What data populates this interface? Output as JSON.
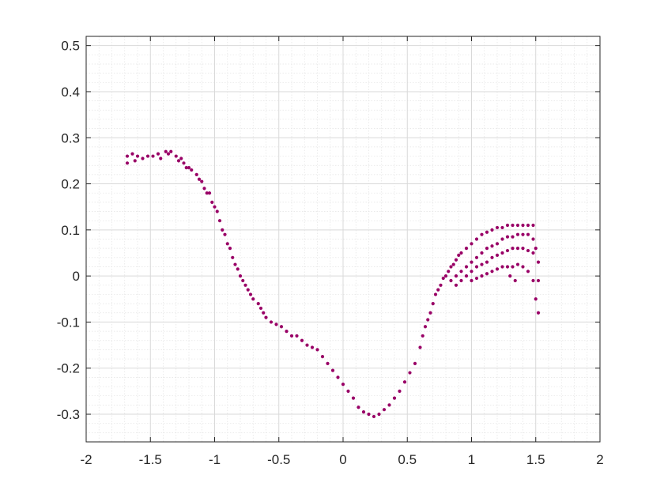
{
  "chart_data": {
    "type": "scatter",
    "title": "",
    "xlabel": "",
    "ylabel": "",
    "xlim": [
      -2,
      2
    ],
    "ylim": [
      -0.36,
      0.52
    ],
    "xticks": [
      -2,
      -1.5,
      -1,
      -0.5,
      0,
      0.5,
      1,
      1.5,
      2
    ],
    "xtick_labels": [
      "-2",
      "-1.5",
      "-1",
      "-0.5",
      "0",
      "0.5",
      "1",
      "1.5",
      "2"
    ],
    "yticks": [
      -0.3,
      -0.2,
      -0.1,
      0,
      0.1,
      0.2,
      0.3,
      0.4,
      0.5
    ],
    "ytick_labels": [
      "-0.3",
      "-0.2",
      "-0.1",
      "0",
      "0.1",
      "0.2",
      "0.3",
      "0.4",
      "0.5"
    ],
    "grid": "on (major and minor)",
    "marker_color": "#990066",
    "series": [
      {
        "values": [
          [
            -1.68,
            0.26
          ],
          [
            -1.68,
            0.245
          ],
          [
            -1.64,
            0.265
          ],
          [
            -1.62,
            0.25
          ],
          [
            -1.6,
            0.26
          ],
          [
            -1.56,
            0.255
          ],
          [
            -1.52,
            0.26
          ],
          [
            -1.48,
            0.26
          ],
          [
            -1.44,
            0.265
          ],
          [
            -1.42,
            0.255
          ],
          [
            -1.38,
            0.27
          ],
          [
            -1.36,
            0.265
          ],
          [
            -1.34,
            0.27
          ],
          [
            -1.3,
            0.26
          ],
          [
            -1.28,
            0.25
          ],
          [
            -1.26,
            0.255
          ],
          [
            -1.24,
            0.245
          ],
          [
            -1.22,
            0.235
          ],
          [
            -1.2,
            0.235
          ],
          [
            -1.18,
            0.23
          ],
          [
            -1.14,
            0.22
          ],
          [
            -1.12,
            0.21
          ],
          [
            -1.1,
            0.205
          ],
          [
            -1.08,
            0.19
          ],
          [
            -1.06,
            0.18
          ],
          [
            -1.04,
            0.18
          ],
          [
            -1.02,
            0.16
          ],
          [
            -1.0,
            0.15
          ],
          [
            -0.98,
            0.14
          ],
          [
            -0.96,
            0.12
          ],
          [
            -0.94,
            0.1
          ],
          [
            -0.92,
            0.09
          ],
          [
            -0.9,
            0.07
          ],
          [
            -0.88,
            0.06
          ],
          [
            -0.86,
            0.04
          ],
          [
            -0.84,
            0.025
          ],
          [
            -0.82,
            0.015
          ],
          [
            -0.8,
            0.0
          ],
          [
            -0.78,
            -0.01
          ],
          [
            -0.76,
            -0.02
          ],
          [
            -0.74,
            -0.03
          ],
          [
            -0.72,
            -0.04
          ],
          [
            -0.7,
            -0.05
          ],
          [
            -0.66,
            -0.06
          ],
          [
            -0.64,
            -0.07
          ],
          [
            -0.62,
            -0.08
          ],
          [
            -0.6,
            -0.09
          ],
          [
            -0.56,
            -0.1
          ],
          [
            -0.52,
            -0.105
          ],
          [
            -0.48,
            -0.11
          ],
          [
            -0.44,
            -0.12
          ],
          [
            -0.4,
            -0.13
          ],
          [
            -0.36,
            -0.13
          ],
          [
            -0.32,
            -0.14
          ],
          [
            -0.28,
            -0.15
          ],
          [
            -0.24,
            -0.155
          ],
          [
            -0.2,
            -0.16
          ],
          [
            -0.16,
            -0.175
          ],
          [
            -0.12,
            -0.19
          ],
          [
            -0.08,
            -0.205
          ],
          [
            -0.04,
            -0.22
          ],
          [
            0.0,
            -0.235
          ],
          [
            0.04,
            -0.25
          ],
          [
            0.08,
            -0.265
          ],
          [
            0.12,
            -0.285
          ],
          [
            0.16,
            -0.295
          ],
          [
            0.2,
            -0.3
          ],
          [
            0.24,
            -0.305
          ],
          [
            0.28,
            -0.3
          ],
          [
            0.32,
            -0.29
          ],
          [
            0.36,
            -0.28
          ],
          [
            0.4,
            -0.265
          ],
          [
            0.44,
            -0.25
          ],
          [
            0.48,
            -0.23
          ],
          [
            0.52,
            -0.21
          ],
          [
            0.56,
            -0.19
          ],
          [
            0.6,
            -0.155
          ],
          [
            0.62,
            -0.13
          ],
          [
            0.64,
            -0.11
          ],
          [
            0.66,
            -0.095
          ],
          [
            0.68,
            -0.08
          ],
          [
            0.7,
            -0.06
          ],
          [
            0.72,
            -0.04
          ],
          [
            0.74,
            -0.03
          ],
          [
            0.76,
            -0.02
          ],
          [
            0.78,
            -0.005
          ],
          [
            0.8,
            0.0
          ],
          [
            0.82,
            0.01
          ],
          [
            0.84,
            0.02
          ],
          [
            0.86,
            0.025
          ],
          [
            0.88,
            0.035
          ],
          [
            0.9,
            0.045
          ],
          [
            0.92,
            0.05
          ],
          [
            0.96,
            0.06
          ],
          [
            1.0,
            0.07
          ],
          [
            1.04,
            0.08
          ],
          [
            1.08,
            0.09
          ],
          [
            1.12,
            0.095
          ],
          [
            1.16,
            0.1
          ],
          [
            1.2,
            0.105
          ],
          [
            1.24,
            0.105
          ],
          [
            1.28,
            0.11
          ],
          [
            1.32,
            0.11
          ],
          [
            1.36,
            0.11
          ],
          [
            1.4,
            0.11
          ],
          [
            1.44,
            0.11
          ],
          [
            1.48,
            0.11
          ],
          [
            0.84,
            -0.01
          ],
          [
            0.88,
            0.0
          ],
          [
            0.92,
            0.01
          ],
          [
            0.96,
            0.02
          ],
          [
            1.0,
            0.03
          ],
          [
            1.04,
            0.04
          ],
          [
            1.08,
            0.05
          ],
          [
            1.12,
            0.06
          ],
          [
            1.16,
            0.065
          ],
          [
            1.2,
            0.07
          ],
          [
            1.24,
            0.08
          ],
          [
            1.28,
            0.085
          ],
          [
            1.32,
            0.085
          ],
          [
            1.36,
            0.09
          ],
          [
            1.4,
            0.09
          ],
          [
            1.44,
            0.09
          ],
          [
            1.48,
            0.08
          ],
          [
            1.5,
            0.06
          ],
          [
            0.88,
            -0.02
          ],
          [
            0.92,
            -0.01
          ],
          [
            0.96,
            0.0
          ],
          [
            1.0,
            0.01
          ],
          [
            1.04,
            0.02
          ],
          [
            1.08,
            0.025
          ],
          [
            1.12,
            0.03
          ],
          [
            1.16,
            0.04
          ],
          [
            1.2,
            0.045
          ],
          [
            1.24,
            0.05
          ],
          [
            1.28,
            0.055
          ],
          [
            1.32,
            0.06
          ],
          [
            1.36,
            0.06
          ],
          [
            1.4,
            0.06
          ],
          [
            1.44,
            0.055
          ],
          [
            1.48,
            0.05
          ],
          [
            1.52,
            0.03
          ],
          [
            1.0,
            -0.01
          ],
          [
            1.04,
            -0.005
          ],
          [
            1.08,
            0.0
          ],
          [
            1.12,
            0.005
          ],
          [
            1.16,
            0.01
          ],
          [
            1.2,
            0.015
          ],
          [
            1.24,
            0.02
          ],
          [
            1.28,
            0.02
          ],
          [
            1.32,
            0.02
          ],
          [
            1.36,
            0.025
          ],
          [
            1.4,
            0.02
          ],
          [
            1.44,
            0.01
          ],
          [
            1.48,
            -0.01
          ],
          [
            1.52,
            -0.01
          ],
          [
            1.5,
            -0.05
          ],
          [
            1.52,
            -0.08
          ],
          [
            1.34,
            -0.01
          ],
          [
            1.3,
            0.0
          ]
        ]
      }
    ]
  }
}
